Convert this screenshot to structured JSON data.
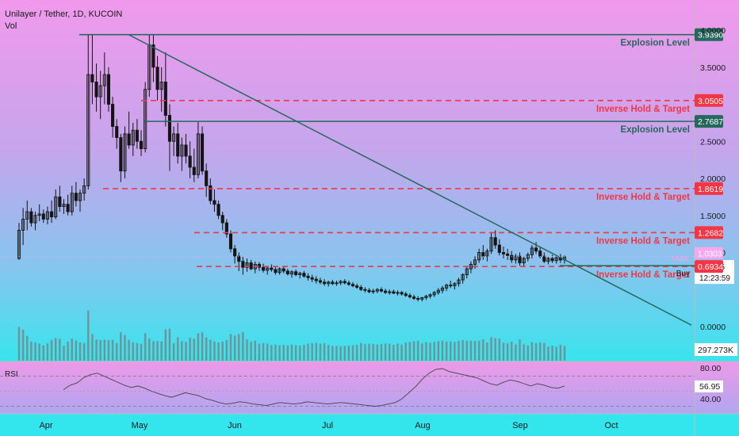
{
  "header": {
    "title": "Unilayer / Tether, 1D, KUCOIN",
    "volume_label": "Vol"
  },
  "chart_data": {
    "type": "candlestick",
    "xlabel": "",
    "ylabel": "",
    "ylim": [
      0,
      4.0
    ],
    "y_ticks": [
      "4.0000",
      "3.5000",
      "2.5000",
      "2.0000",
      "1.5000",
      "1.0000",
      "0.0000"
    ],
    "x_ticks": [
      "Apr",
      "May",
      "Jun",
      "Jul",
      "Aug",
      "Sep",
      "Oct"
    ],
    "grid": false,
    "candles_approx": [
      [
        0.92,
        1.4,
        0.9,
        1.3
      ],
      [
        1.3,
        1.6,
        1.1,
        1.45
      ],
      [
        1.45,
        1.7,
        1.3,
        1.55
      ],
      [
        1.55,
        1.6,
        1.35,
        1.4
      ],
      [
        1.4,
        1.55,
        1.3,
        1.5
      ],
      [
        1.5,
        1.65,
        1.42,
        1.52
      ],
      [
        1.52,
        1.58,
        1.4,
        1.45
      ],
      [
        1.45,
        1.62,
        1.38,
        1.55
      ],
      [
        1.55,
        1.7,
        1.4,
        1.48
      ],
      [
        1.48,
        1.85,
        1.45,
        1.75
      ],
      [
        1.75,
        1.9,
        1.55,
        1.62
      ],
      [
        1.62,
        1.72,
        1.52,
        1.65
      ],
      [
        1.65,
        1.78,
        1.5,
        1.55
      ],
      [
        1.55,
        1.9,
        1.5,
        1.8
      ],
      [
        1.8,
        1.95,
        1.62,
        1.7
      ],
      [
        1.7,
        1.85,
        1.55,
        1.8
      ],
      [
        1.8,
        2.0,
        1.7,
        1.9
      ],
      [
        1.9,
        3.94,
        1.85,
        3.4
      ],
      [
        3.4,
        3.94,
        3.0,
        3.3
      ],
      [
        3.3,
        3.55,
        2.9,
        3.1
      ],
      [
        3.1,
        3.45,
        2.8,
        3.25
      ],
      [
        3.25,
        3.7,
        3.0,
        3.4
      ],
      [
        3.4,
        3.5,
        2.9,
        3.0
      ],
      [
        3.0,
        3.1,
        2.55,
        2.7
      ],
      [
        2.7,
        2.8,
        2.4,
        2.55
      ],
      [
        2.55,
        2.6,
        1.95,
        2.1
      ],
      [
        2.1,
        2.7,
        2.0,
        2.6
      ],
      [
        2.6,
        2.9,
        2.4,
        2.45
      ],
      [
        2.45,
        2.75,
        2.3,
        2.65
      ],
      [
        2.65,
        2.8,
        2.4,
        2.5
      ],
      [
        2.5,
        2.65,
        2.3,
        2.4
      ],
      [
        2.4,
        3.3,
        2.35,
        3.2
      ],
      [
        3.2,
        3.94,
        3.1,
        3.8
      ],
      [
        3.8,
        3.94,
        3.3,
        3.5
      ],
      [
        3.5,
        3.65,
        3.05,
        3.2
      ],
      [
        3.2,
        3.5,
        2.9,
        3.3
      ],
      [
        3.3,
        3.7,
        2.7,
        2.85
      ],
      [
        2.85,
        3.0,
        2.1,
        2.5
      ],
      [
        2.5,
        2.7,
        2.3,
        2.6
      ],
      [
        2.6,
        2.75,
        2.2,
        2.3
      ],
      [
        2.3,
        2.55,
        2.1,
        2.45
      ],
      [
        2.45,
        2.6,
        2.2,
        2.3
      ],
      [
        2.3,
        2.5,
        2.0,
        2.15
      ],
      [
        2.15,
        2.4,
        1.95,
        2.05
      ],
      [
        2.05,
        2.77,
        2.0,
        2.6
      ],
      [
        2.6,
        2.7,
        2.05,
        2.1
      ],
      [
        2.1,
        2.2,
        1.75,
        1.9
      ],
      [
        1.9,
        2.0,
        1.65,
        1.7
      ],
      [
        1.7,
        1.85,
        1.55,
        1.65
      ],
      [
        1.65,
        1.7,
        1.45,
        1.5
      ],
      [
        1.5,
        1.55,
        1.3,
        1.4
      ],
      [
        1.4,
        1.45,
        1.2,
        1.25
      ],
      [
        1.25,
        1.3,
        1.0,
        1.05
      ],
      [
        1.05,
        1.1,
        0.85,
        0.95
      ],
      [
        0.95,
        1.0,
        0.75,
        0.88
      ],
      [
        0.88,
        0.95,
        0.7,
        0.8
      ],
      [
        0.8,
        0.92,
        0.74,
        0.86
      ],
      [
        0.86,
        0.9,
        0.76,
        0.78
      ],
      [
        0.78,
        0.88,
        0.72,
        0.84
      ],
      [
        0.84,
        0.87,
        0.75,
        0.8
      ],
      [
        0.8,
        0.85,
        0.73,
        0.76
      ],
      [
        0.76,
        0.82,
        0.7,
        0.79
      ],
      [
        0.79,
        0.84,
        0.74,
        0.77
      ],
      [
        0.77,
        0.8,
        0.7,
        0.73
      ],
      [
        0.73,
        0.8,
        0.7,
        0.78
      ],
      [
        0.78,
        0.82,
        0.72,
        0.75
      ],
      [
        0.75,
        0.78,
        0.69,
        0.71
      ],
      [
        0.71,
        0.76,
        0.66,
        0.74
      ],
      [
        0.74,
        0.77,
        0.68,
        0.7
      ],
      [
        0.7,
        0.74,
        0.65,
        0.72
      ],
      [
        0.72,
        0.75,
        0.66,
        0.68
      ],
      [
        0.68,
        0.72,
        0.62,
        0.66
      ],
      [
        0.66,
        0.7,
        0.6,
        0.64
      ],
      [
        0.64,
        0.68,
        0.58,
        0.62
      ],
      [
        0.62,
        0.66,
        0.57,
        0.6
      ],
      [
        0.6,
        0.64,
        0.55,
        0.58
      ],
      [
        0.58,
        0.62,
        0.54,
        0.6
      ],
      [
        0.6,
        0.63,
        0.56,
        0.58
      ],
      [
        0.58,
        0.62,
        0.55,
        0.59
      ],
      [
        0.59,
        0.63,
        0.56,
        0.61
      ],
      [
        0.61,
        0.64,
        0.57,
        0.59
      ],
      [
        0.59,
        0.62,
        0.55,
        0.57
      ],
      [
        0.57,
        0.6,
        0.53,
        0.55
      ],
      [
        0.55,
        0.58,
        0.51,
        0.53
      ],
      [
        0.53,
        0.56,
        0.48,
        0.5
      ],
      [
        0.5,
        0.53,
        0.46,
        0.49
      ],
      [
        0.49,
        0.52,
        0.45,
        0.47
      ],
      [
        0.47,
        0.51,
        0.44,
        0.48
      ],
      [
        0.48,
        0.52,
        0.45,
        0.5
      ],
      [
        0.5,
        0.53,
        0.46,
        0.48
      ],
      [
        0.48,
        0.51,
        0.44,
        0.46
      ],
      [
        0.46,
        0.5,
        0.43,
        0.47
      ],
      [
        0.47,
        0.5,
        0.44,
        0.45
      ],
      [
        0.45,
        0.49,
        0.42,
        0.46
      ],
      [
        0.46,
        0.48,
        0.42,
        0.44
      ],
      [
        0.44,
        0.47,
        0.4,
        0.42
      ],
      [
        0.42,
        0.45,
        0.38,
        0.4
      ],
      [
        0.4,
        0.43,
        0.36,
        0.38
      ],
      [
        0.38,
        0.41,
        0.34,
        0.37
      ],
      [
        0.37,
        0.4,
        0.34,
        0.39
      ],
      [
        0.39,
        0.43,
        0.36,
        0.41
      ],
      [
        0.41,
        0.45,
        0.38,
        0.43
      ],
      [
        0.43,
        0.48,
        0.4,
        0.46
      ],
      [
        0.46,
        0.52,
        0.43,
        0.49
      ],
      [
        0.49,
        0.55,
        0.45,
        0.52
      ],
      [
        0.52,
        0.58,
        0.48,
        0.56
      ],
      [
        0.56,
        0.62,
        0.52,
        0.55
      ],
      [
        0.55,
        0.6,
        0.5,
        0.58
      ],
      [
        0.58,
        0.66,
        0.54,
        0.63
      ],
      [
        0.63,
        0.72,
        0.58,
        0.7
      ],
      [
        0.7,
        0.8,
        0.65,
        0.78
      ],
      [
        0.78,
        0.88,
        0.72,
        0.84
      ],
      [
        0.84,
        0.95,
        0.78,
        0.9
      ],
      [
        0.9,
        1.05,
        0.86,
        1.0
      ],
      [
        1.0,
        1.1,
        0.9,
        0.95
      ],
      [
        0.95,
        1.05,
        0.88,
        1.02
      ],
      [
        1.02,
        1.27,
        0.98,
        1.2
      ],
      [
        1.2,
        1.3,
        1.05,
        1.1
      ],
      [
        1.1,
        1.18,
        0.96,
        1.0
      ],
      [
        1.0,
        1.08,
        0.92,
        0.98
      ],
      [
        0.98,
        1.05,
        0.9,
        0.96
      ],
      [
        0.96,
        1.02,
        0.86,
        0.9
      ],
      [
        0.9,
        0.98,
        0.85,
        0.95
      ],
      [
        0.95,
        1.0,
        0.82,
        0.86
      ],
      [
        0.86,
        0.95,
        0.82,
        0.92
      ],
      [
        0.92,
        1.0,
        0.88,
        0.97
      ],
      [
        0.97,
        1.1,
        0.92,
        1.06
      ],
      [
        1.06,
        1.14,
        0.98,
        1.02
      ],
      [
        1.02,
        1.08,
        0.92,
        0.95
      ],
      [
        0.95,
        1.0,
        0.86,
        0.88
      ],
      [
        0.88,
        0.94,
        0.84,
        0.92
      ],
      [
        0.92,
        0.97,
        0.86,
        0.89
      ],
      [
        0.89,
        0.95,
        0.85,
        0.93
      ],
      [
        0.93,
        0.98,
        0.86,
        0.9
      ],
      [
        0.9,
        0.96,
        0.85,
        0.94
      ]
    ],
    "volume_label": "297.273K",
    "horizontal_levels": [
      {
        "label": "Explosion Level",
        "value": 3.939,
        "price": "3.9390",
        "style": "solid",
        "color": "#26695c"
      },
      {
        "label": "Inverse Hold & Target",
        "value": 3.0505,
        "price": "3.0505",
        "style": "dashed",
        "color": "#f23645"
      },
      {
        "label": "Explosion Level",
        "value": 2.7687,
        "price": "2.7687",
        "style": "solid",
        "color": "#26695c"
      },
      {
        "label": "Inverse Hold & Target",
        "value": 1.8619,
        "price": "1.8619",
        "style": "dashed",
        "color": "#f23645"
      },
      {
        "label": "Inverse Hold & Target",
        "value": 1.2682,
        "price": "1.2682",
        "style": "dashed",
        "color": "#f23645"
      },
      {
        "label": "Inverse Hold & Target",
        "value": 0.8103,
        "price": "0.8103",
        "style": "dashed",
        "color": "#f23645"
      }
    ],
    "trendline": {
      "from_value": 3.94,
      "to_value": 0.02,
      "color": "#26695c"
    },
    "buy_line": {
      "label": "Buy",
      "value": 0.9185,
      "color": "#26695c"
    },
    "price_markers": [
      {
        "text": "1.0303",
        "value": 1.0303,
        "kind": "faint"
      },
      {
        "text": "0.9185",
        "value": 0.9185,
        "kind": "current"
      },
      {
        "text": "12:23:59",
        "value": 0.9185,
        "kind": "countdown"
      },
      {
        "text": "0.6934",
        "value": 0.6934,
        "kind": "red"
      }
    ],
    "annotation_faint": "Middl",
    "rsi": {
      "label": "RSI",
      "current": "56.95",
      "ticks": [
        "80.00",
        "40.00"
      ],
      "values_approx": [
        52,
        58,
        61,
        68,
        72,
        74,
        70,
        66,
        62,
        58,
        55,
        57,
        54,
        50,
        47,
        44,
        42,
        45,
        48,
        46,
        44,
        40,
        38,
        35,
        33,
        34,
        36,
        35,
        33,
        32,
        31,
        33,
        35,
        34,
        33,
        34,
        36,
        35,
        34,
        33,
        34,
        35,
        34,
        33,
        32,
        31,
        30,
        31,
        33,
        35,
        40,
        48,
        56,
        66,
        74,
        79,
        80,
        76,
        74,
        72,
        70,
        68,
        64,
        60,
        58,
        62,
        65,
        63,
        60,
        57,
        60,
        58,
        55,
        54,
        57
      ]
    }
  },
  "colors": {
    "bg_top": "#f199ec",
    "bg_mid": "#a8a8ec",
    "bg_bottom": "#33e6ee",
    "candle": "#141414",
    "green": "#26695c",
    "red": "#f23645",
    "volume_bar": "#7b7b7b"
  }
}
